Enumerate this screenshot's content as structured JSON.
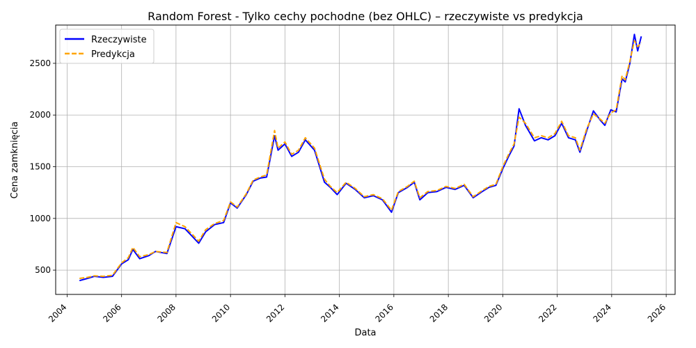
{
  "chart_data": {
    "type": "line",
    "title": "Random Forest - Tylko cechy pochodne (bez OHLC) – rzeczywiste vs predykcja",
    "xlabel": "Data",
    "ylabel": "Cena zamknięcia",
    "x_ticks": [
      "2004",
      "2006",
      "2008",
      "2010",
      "2012",
      "2014",
      "2016",
      "2018",
      "2020",
      "2022",
      "2024",
      "2026"
    ],
    "y_ticks": [
      "500",
      "1000",
      "1500",
      "2000",
      "2500"
    ],
    "xlim": [
      "2003-08-01",
      "2026-05-01"
    ],
    "ylim": [
      265,
      2870
    ],
    "grid": true,
    "legend_position": "top-left",
    "colors": {
      "actual": "#0000ff",
      "predicted": "#ffa500"
    },
    "x": [
      "2004-06-15",
      "2004-10-01",
      "2005-01-01",
      "2005-05-01",
      "2005-09-01",
      "2006-01-01",
      "2006-04-01",
      "2006-06-01",
      "2006-09-01",
      "2007-01-01",
      "2007-04-01",
      "2007-09-01",
      "2008-01-01",
      "2008-05-01",
      "2008-08-01",
      "2008-11-01",
      "2009-02-01",
      "2009-06-01",
      "2009-10-01",
      "2010-01-01",
      "2010-04-01",
      "2010-08-01",
      "2010-11-01",
      "2011-02-01",
      "2011-05-01",
      "2011-08-15",
      "2011-10-01",
      "2012-01-01",
      "2012-04-01",
      "2012-07-01",
      "2012-10-01",
      "2013-02-01",
      "2013-06-15",
      "2013-09-01",
      "2013-12-01",
      "2014-04-01",
      "2014-08-01",
      "2014-12-01",
      "2015-04-01",
      "2015-08-01",
      "2015-12-01",
      "2016-03-01",
      "2016-07-01",
      "2016-10-01",
      "2016-12-15",
      "2017-04-01",
      "2017-08-01",
      "2017-12-01",
      "2018-04-01",
      "2018-08-01",
      "2018-12-01",
      "2019-04-01",
      "2019-07-01",
      "2019-10-01",
      "2020-01-01",
      "2020-03-20",
      "2020-06-01",
      "2020-08-07",
      "2020-11-01",
      "2021-03-01",
      "2021-06-01",
      "2021-09-01",
      "2021-12-01",
      "2022-03-01",
      "2022-06-01",
      "2022-09-01",
      "2022-11-01",
      "2023-02-01",
      "2023-05-01",
      "2023-08-01",
      "2023-10-01",
      "2023-12-20",
      "2024-03-01",
      "2024-05-20",
      "2024-07-01",
      "2024-09-01",
      "2024-11-01",
      "2024-12-15",
      "2025-02-01"
    ],
    "series": [
      {
        "name": "Rzeczywiste",
        "values": [
          398,
          420,
          440,
          430,
          440,
          560,
          600,
          700,
          610,
          640,
          680,
          660,
          920,
          900,
          830,
          760,
          870,
          940,
          960,
          1150,
          1100,
          1230,
          1360,
          1390,
          1400,
          1800,
          1660,
          1720,
          1600,
          1640,
          1760,
          1660,
          1350,
          1300,
          1230,
          1340,
          1280,
          1200,
          1220,
          1180,
          1060,
          1250,
          1300,
          1350,
          1180,
          1250,
          1260,
          1300,
          1280,
          1320,
          1200,
          1260,
          1300,
          1320,
          1480,
          1600,
          1700,
          2060,
          1900,
          1750,
          1780,
          1760,
          1800,
          1920,
          1780,
          1760,
          1640,
          1850,
          2040,
          1950,
          1900,
          2050,
          2030,
          2350,
          2320,
          2500,
          2780,
          2620,
          2760
        ]
      },
      {
        "name": "Predykcja",
        "values": [
          420,
          430,
          445,
          440,
          450,
          570,
          620,
          720,
          630,
          650,
          680,
          670,
          960,
          920,
          850,
          780,
          890,
          950,
          980,
          1160,
          1110,
          1240,
          1370,
          1400,
          1420,
          1850,
          1680,
          1740,
          1620,
          1660,
          1780,
          1680,
          1380,
          1310,
          1250,
          1350,
          1290,
          1210,
          1230,
          1190,
          1080,
          1260,
          1310,
          1360,
          1200,
          1260,
          1270,
          1310,
          1290,
          1330,
          1210,
          1270,
          1310,
          1330,
          1500,
          1620,
          1720,
          1980,
          1920,
          1780,
          1800,
          1780,
          1820,
          1940,
          1800,
          1780,
          1660,
          1870,
          2010,
          1960,
          1920,
          2020,
          2050,
          2380,
          2340,
          2520,
          2720,
          2660,
          2700
        ]
      }
    ]
  }
}
